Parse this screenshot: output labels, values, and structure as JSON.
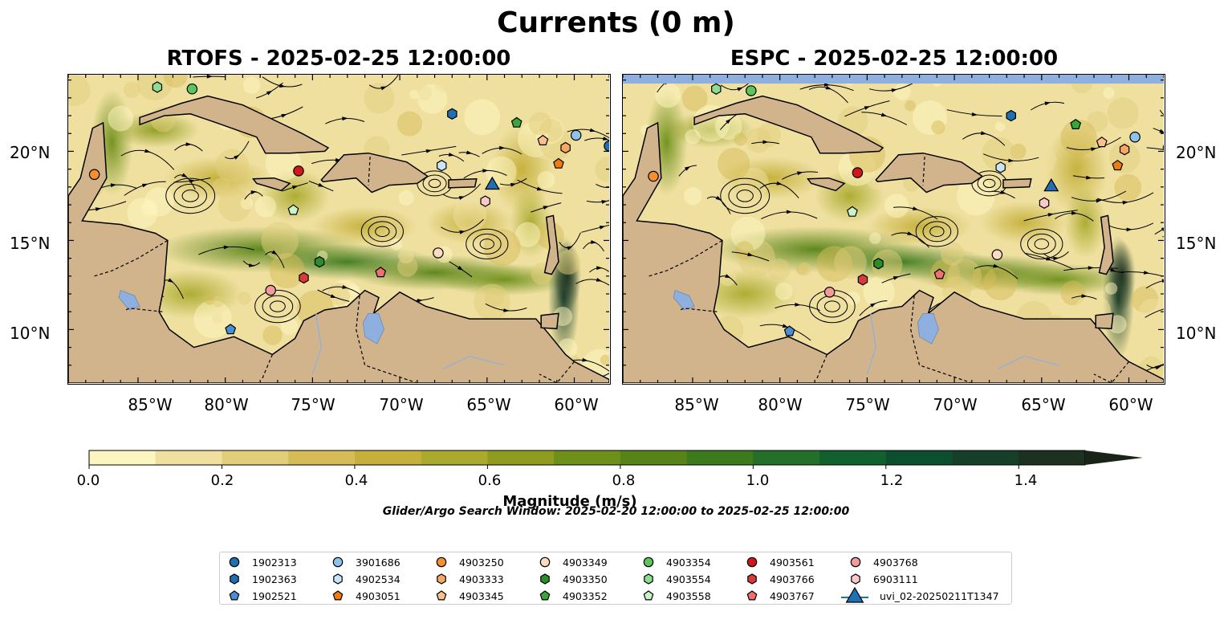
{
  "figure": {
    "title": "Currents (0 m)",
    "search_window": "Glider/Argo Search Window: 2025-02-20 12:00:00 to 2025-02-25 12:00:00"
  },
  "panels": [
    {
      "title": "RTOFS - 2025-02-25 12:00:00"
    },
    {
      "title": "ESPC - 2025-02-25 12:00:00"
    }
  ],
  "map": {
    "lon_range": [
      -89,
      -58
    ],
    "lat_range": [
      7,
      24.3
    ],
    "lat_ticks": [
      "20°N",
      "15°N",
      "10°N"
    ],
    "lon_ticks": [
      "85°W",
      "80°W",
      "75°W",
      "70°W",
      "65°W",
      "60°W"
    ],
    "land_color": "#d2b48c",
    "water_color": "#8fb0df"
  },
  "colorbar": {
    "title": "Magnitude (m/s)",
    "ticks": [
      "0.0",
      "0.2",
      "0.4",
      "0.6",
      "0.8",
      "1.0",
      "1.2",
      "1.4"
    ],
    "colors": [
      "#fdf5c0",
      "#efe0a0",
      "#e2cd7b",
      "#d6bc58",
      "#c4b03a",
      "#abaa2e",
      "#8f9c20",
      "#6e901a",
      "#588318",
      "#3d7a1e",
      "#24702a",
      "#13602f",
      "#0c4e2e",
      "#163e28",
      "#1d3120",
      "#1a2318"
    ]
  },
  "legend": {
    "items": [
      {
        "label": "1902313",
        "shape": "circle",
        "color": "#1f6fb4"
      },
      {
        "label": "1902363",
        "shape": "hexagon",
        "color": "#1f6fb4"
      },
      {
        "label": "1902521",
        "shape": "pentagon",
        "color": "#4a8fd4"
      },
      {
        "label": "3901686",
        "shape": "circle",
        "color": "#8dc3ec"
      },
      {
        "label": "4902534",
        "shape": "hexagon",
        "color": "#c8e4f6"
      },
      {
        "label": "4903051",
        "shape": "pentagon",
        "color": "#f07b10"
      },
      {
        "label": "4903250",
        "shape": "circle",
        "color": "#f58f30"
      },
      {
        "label": "4903333",
        "shape": "hexagon",
        "color": "#f8a860"
      },
      {
        "label": "4903345",
        "shape": "pentagon",
        "color": "#fbc08c"
      },
      {
        "label": "4903349",
        "shape": "circle",
        "color": "#fcdcc0"
      },
      {
        "label": "4903350",
        "shape": "hexagon",
        "color": "#2a8f2a"
      },
      {
        "label": "4903352",
        "shape": "pentagon",
        "color": "#3aa63a"
      },
      {
        "label": "4903354",
        "shape": "circle",
        "color": "#5cc65c"
      },
      {
        "label": "4903554",
        "shape": "hexagon",
        "color": "#8fdc8f"
      },
      {
        "label": "4903558",
        "shape": "pentagon",
        "color": "#c8f4c8"
      },
      {
        "label": "4903561",
        "shape": "circle",
        "color": "#d0181c"
      },
      {
        "label": "4903766",
        "shape": "hexagon",
        "color": "#d83a3c"
      },
      {
        "label": "4903767",
        "shape": "pentagon",
        "color": "#f07070"
      },
      {
        "label": "4903768",
        "shape": "circle",
        "color": "#f59a9a"
      },
      {
        "label": "6903111",
        "shape": "hexagon",
        "color": "#fcc8c8"
      },
      {
        "label": "uvi_02-20250211T1347",
        "shape": "triangle",
        "color": "#1f6fb4"
      }
    ]
  },
  "floats": [
    {
      "id": "1902313",
      "lon": -58.0,
      "lat": 20.3
    },
    {
      "id": "1902363",
      "lon": -67.0,
      "lat": 22.1
    },
    {
      "id": "1902521",
      "lon": -79.7,
      "lat": 10.0
    },
    {
      "id": "3901686",
      "lon": -59.9,
      "lat": 20.9
    },
    {
      "id": "4902534",
      "lon": -67.6,
      "lat": 19.2
    },
    {
      "id": "4903051",
      "lon": -60.9,
      "lat": 19.3
    },
    {
      "id": "4903250",
      "lon": -87.5,
      "lat": 18.7
    },
    {
      "id": "4903333",
      "lon": -60.5,
      "lat": 20.2
    },
    {
      "id": "4903345",
      "lon": -61.8,
      "lat": 20.6
    },
    {
      "id": "4903349",
      "lon": -67.8,
      "lat": 14.3
    },
    {
      "id": "4903350",
      "lon": -74.6,
      "lat": 13.8
    },
    {
      "id": "4903352",
      "lon": -63.3,
      "lat": 21.6
    },
    {
      "id": "4903354",
      "lon": -81.9,
      "lat": 23.5
    },
    {
      "id": "4903554",
      "lon": -83.9,
      "lat": 23.6
    },
    {
      "id": "4903558",
      "lon": -76.1,
      "lat": 16.7
    },
    {
      "id": "4903561",
      "lon": -75.8,
      "lat": 18.9
    },
    {
      "id": "4903766",
      "lon": -75.5,
      "lat": 12.9
    },
    {
      "id": "4903767",
      "lon": -71.1,
      "lat": 13.2
    },
    {
      "id": "4903768",
      "lon": -77.4,
      "lat": 12.2
    },
    {
      "id": "6903111",
      "lon": -65.1,
      "lat": 17.2
    },
    {
      "id": "uvi_02-20250211T1347",
      "lon": -64.7,
      "lat": 18.1
    }
  ]
}
